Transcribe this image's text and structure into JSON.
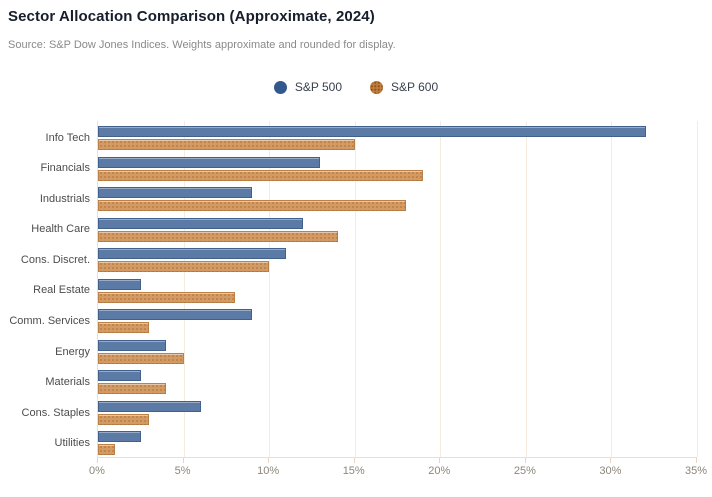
{
  "header": {
    "title": "Sector Allocation Comparison (Approximate, 2024)",
    "source": "Source: S&P Dow Jones Indices. Weights approximate and rounded for display."
  },
  "legend": {
    "items": [
      {
        "label": "S&P 500",
        "color": "#32588e",
        "marker": "solid-circle"
      },
      {
        "label": "S&P 600",
        "color": "#c07c3e",
        "marker": "dotted-circle"
      }
    ]
  },
  "chart_data": {
    "type": "bar",
    "orientation": "horizontal",
    "title": "Sector Allocation Comparison (Approximate, 2024)",
    "subtitle": "Source: S&P Dow Jones Indices. Weights approximate and rounded for display.",
    "categories": [
      "Info Tech",
      "Financials",
      "Industrials",
      "Health Care",
      "Cons. Discret.",
      "Real Estate",
      "Comm. Services",
      "Energy",
      "Materials",
      "Cons. Staples",
      "Utilities"
    ],
    "series": [
      {
        "name": "S&P 500",
        "color": "#5b7aa5",
        "values": [
          32,
          13,
          9,
          12,
          11,
          2.5,
          9,
          4,
          2.5,
          6,
          2.5
        ]
      },
      {
        "name": "S&P 600",
        "color": "#d49a64",
        "values": [
          15,
          19,
          18,
          14,
          10,
          8,
          3,
          5,
          4,
          3,
          1
        ]
      }
    ],
    "xlabel": "",
    "ylabel": "",
    "x_ticks": [
      "0%",
      "5%",
      "10%",
      "15%",
      "20%",
      "25%",
      "30%",
      "35%"
    ],
    "xlim": [
      0,
      35
    ],
    "grid": true,
    "gridline_color": "#f5ecdf",
    "legend_position": "top-center"
  }
}
